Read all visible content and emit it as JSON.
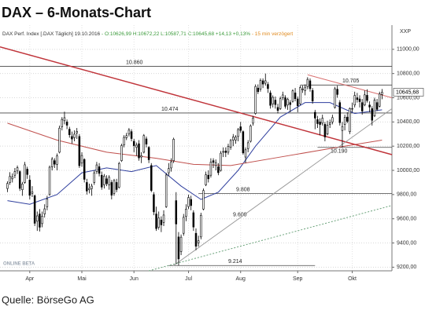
{
  "chart_data": {
    "type": "candlestick",
    "title": "DAX – 6-Monats-Chart",
    "header": [
      {
        "text": "DAX Perf. Index [.DAX Täglich] 19.10.2016",
        "color": "#333333"
      },
      {
        "text": " - O:10626,99 H:10672,22 L:10587,71 C:10645,68 +14,13 +0,13%",
        "color": "#3a9a3a"
      },
      {
        "text": " - 15 min verzögert",
        "color": "#e08a1e"
      }
    ],
    "axis_label": "XXP",
    "source": "Quelle: BörseGo AG",
    "watermark": "ONLINE BETA",
    "xlim": [
      -3,
      155
    ],
    "ylim": [
      9170,
      11200
    ],
    "xticks": [
      {
        "value": 9,
        "label": "Apr"
      },
      {
        "value": 30,
        "label": "Mai"
      },
      {
        "value": 51,
        "label": "Jun"
      },
      {
        "value": 73,
        "label": "Jul"
      },
      {
        "value": 94,
        "label": "Aug"
      },
      {
        "value": 117,
        "label": "Sep"
      },
      {
        "value": 139,
        "label": "Okt"
      }
    ],
    "yticks": [
      {
        "value": 9200,
        "label": "9200,00"
      },
      {
        "value": 9400,
        "label": "9400,00"
      },
      {
        "value": 9600,
        "label": "9600,00"
      },
      {
        "value": 9800,
        "label": "9800,00"
      },
      {
        "value": 10000,
        "label": "10000,00"
      },
      {
        "value": 10200,
        "label": "10200,00"
      },
      {
        "value": 10400,
        "label": "10400,00"
      },
      {
        "value": 10600,
        "label": "10600,00"
      },
      {
        "value": 10800,
        "label": "10800,00"
      },
      {
        "value": 11000,
        "label": "11000,00"
      }
    ],
    "grid": true,
    "up_color": "#ffffff",
    "down_color": "#000000",
    "last": {
      "value": 10645.68,
      "label": "10645,68"
    },
    "candles": [
      [
        9850,
        9910,
        9820,
        9892
      ],
      [
        9900,
        9985,
        9880,
        9950
      ],
      [
        9930,
        9975,
        9900,
        9948
      ],
      [
        9960,
        10020,
        9935,
        9990
      ],
      [
        9995,
        10040,
        9970,
        10022
      ],
      [
        9990,
        10000,
        9830,
        9851
      ],
      [
        9840,
        9905,
        9790,
        9887
      ],
      [
        9900,
        10070,
        9890,
        10046
      ],
      [
        10010,
        10030,
        9930,
        9966
      ],
      [
        9920,
        9960,
        9760,
        9794
      ],
      [
        9810,
        9870,
        9780,
        9822
      ],
      [
        9790,
        9800,
        9540,
        9563
      ],
      [
        9580,
        9660,
        9500,
        9624
      ],
      [
        9640,
        9680,
        9495,
        9530
      ],
      [
        9560,
        9660,
        9530,
        9622
      ],
      [
        9640,
        9720,
        9610,
        9682
      ],
      [
        9700,
        9790,
        9670,
        9762
      ],
      [
        9800,
        10040,
        9790,
        10026
      ],
      [
        10030,
        10110,
        10000,
        10093
      ],
      [
        10080,
        10100,
        10020,
        10051
      ],
      [
        10050,
        10140,
        10000,
        10120
      ],
      [
        10150,
        10370,
        10140,
        10349
      ],
      [
        10360,
        10440,
        10330,
        10421
      ],
      [
        10410,
        10485,
        10380,
        10435
      ],
      [
        10400,
        10420,
        10340,
        10373
      ],
      [
        10340,
        10360,
        10270,
        10294
      ],
      [
        10280,
        10320,
        10220,
        10259
      ],
      [
        10270,
        10330,
        10240,
        10299
      ],
      [
        10310,
        10350,
        10260,
        10321
      ],
      [
        10280,
        10300,
        10020,
        10039
      ],
      [
        10060,
        10150,
        10030,
        10123
      ],
      [
        10090,
        10100,
        9900,
        9926
      ],
      [
        9900,
        9930,
        9800,
        9829
      ],
      [
        9840,
        9890,
        9810,
        9851
      ],
      [
        9850,
        9890,
        9790,
        9870
      ],
      [
        9900,
        10000,
        9880,
        9980
      ],
      [
        9990,
        10070,
        9970,
        10045
      ],
      [
        10030,
        10060,
        9950,
        9975
      ],
      [
        9960,
        9990,
        9840,
        9862
      ],
      [
        9880,
        9970,
        9850,
        9952
      ],
      [
        9930,
        9960,
        9870,
        9890
      ],
      [
        9880,
        9960,
        9840,
        9943
      ],
      [
        9900,
        9920,
        9760,
        9795
      ],
      [
        9810,
        9930,
        9790,
        9916
      ],
      [
        9900,
        9930,
        9820,
        9842
      ],
      [
        9860,
        10070,
        9850,
        10057
      ],
      [
        10080,
        10220,
        10070,
        10205
      ],
      [
        10210,
        10290,
        10190,
        10272
      ],
      [
        10270,
        10310,
        10250,
        10287
      ],
      [
        10300,
        10350,
        10280,
        10333
      ],
      [
        10320,
        10340,
        10240,
        10263
      ],
      [
        10240,
        10260,
        10150,
        10204
      ],
      [
        10190,
        10230,
        10120,
        10208
      ],
      [
        10220,
        10250,
        10080,
        10103
      ],
      [
        10110,
        10150,
        10060,
        10121
      ],
      [
        10150,
        10300,
        10140,
        10287
      ],
      [
        10260,
        10280,
        10190,
        10217
      ],
      [
        10190,
        10200,
        10060,
        10088
      ],
      [
        10040,
        10060,
        9820,
        9834
      ],
      [
        9800,
        9820,
        9630,
        9657
      ],
      [
        9640,
        9700,
        9500,
        9519
      ],
      [
        9530,
        9660,
        9510,
        9606
      ],
      [
        9590,
        9620,
        9490,
        9550
      ],
      [
        9570,
        9670,
        9540,
        9631
      ],
      [
        9700,
        9980,
        9690,
        9962
      ],
      [
        9980,
        10060,
        9950,
        10015
      ],
      [
        10020,
        10100,
        9990,
        10071
      ],
      [
        10080,
        10270,
        10060,
        10257
      ],
      [
        9750,
        9820,
        9226,
        9557
      ],
      [
        9450,
        9490,
        9214,
        9268
      ],
      [
        9330,
        9470,
        9300,
        9448
      ],
      [
        9480,
        9640,
        9460,
        9612
      ],
      [
        9620,
        9720,
        9580,
        9680
      ],
      [
        9700,
        9800,
        9680,
        9776
      ],
      [
        9760,
        9790,
        9670,
        9709
      ],
      [
        9650,
        9670,
        9500,
        9532
      ],
      [
        9480,
        9520,
        9340,
        9373
      ],
      [
        9400,
        9460,
        9370,
        9418
      ],
      [
        9450,
        9650,
        9430,
        9629
      ],
      [
        9680,
        9850,
        9670,
        9833
      ],
      [
        9880,
        9990,
        9870,
        9964
      ],
      [
        9960,
        10000,
        9900,
        9930
      ],
      [
        9960,
        10100,
        9940,
        10068
      ],
      [
        10080,
        10100,
        10020,
        10066
      ],
      [
        10040,
        10090,
        10000,
        10064
      ],
      [
        10030,
        10060,
        9960,
        9981
      ],
      [
        10000,
        10160,
        9990,
        10142
      ],
      [
        10150,
        10190,
        10110,
        10156
      ],
      [
        10160,
        10190,
        10110,
        10147
      ],
      [
        10150,
        10220,
        10130,
        10198
      ],
      [
        10190,
        10260,
        10170,
        10247
      ],
      [
        10250,
        10300,
        10200,
        10275
      ],
      [
        10250,
        10290,
        10220,
        10275
      ],
      [
        10280,
        10350,
        10240,
        10337
      ],
      [
        10360,
        10400,
        10310,
        10330
      ],
      [
        10320,
        10330,
        10130,
        10144
      ],
      [
        10110,
        10190,
        10060,
        10170
      ],
      [
        10180,
        10250,
        10150,
        10228
      ],
      [
        10240,
        10380,
        10230,
        10367
      ],
      [
        10390,
        10450,
        10370,
        10432
      ],
      [
        10470,
        10710,
        10460,
        10693
      ],
      [
        10680,
        10710,
        10630,
        10650
      ],
      [
        10670,
        10760,
        10650,
        10743
      ],
      [
        10740,
        10760,
        10680,
        10713
      ],
      [
        10720,
        10800,
        10700,
        10740
      ],
      [
        10710,
        10730,
        10640,
        10676
      ],
      [
        10640,
        10660,
        10510,
        10537
      ],
      [
        10550,
        10620,
        10520,
        10603
      ],
      [
        10580,
        10610,
        10510,
        10544
      ],
      [
        10520,
        10550,
        10470,
        10495
      ],
      [
        10510,
        10610,
        10500,
        10592
      ],
      [
        10600,
        10650,
        10580,
        10623
      ],
      [
        10600,
        10620,
        10510,
        10529
      ],
      [
        10540,
        10600,
        10500,
        10587
      ],
      [
        10560,
        10580,
        10480,
        10544
      ],
      [
        10570,
        10670,
        10560,
        10657
      ],
      [
        10640,
        10680,
        10570,
        10592
      ],
      [
        10590,
        10610,
        10480,
        10534
      ],
      [
        10550,
        10700,
        10540,
        10684
      ],
      [
        10670,
        10700,
        10640,
        10672
      ],
      [
        10660,
        10710,
        10620,
        10687
      ],
      [
        10690,
        10770,
        10670,
        10752
      ],
      [
        10740,
        10760,
        10650,
        10675
      ],
      [
        10660,
        10680,
        10550,
        10573
      ],
      [
        10480,
        10500,
        10340,
        10432
      ],
      [
        10420,
        10450,
        10350,
        10386
      ],
      [
        10400,
        10430,
        10290,
        10379
      ],
      [
        10390,
        10460,
        10370,
        10431
      ],
      [
        10380,
        10400,
        10240,
        10276
      ],
      [
        10300,
        10410,
        10290,
        10373
      ],
      [
        10380,
        10420,
        10350,
        10393
      ],
      [
        10400,
        10460,
        10380,
        10436
      ],
      [
        10520,
        10690,
        10510,
        10674
      ],
      [
        10670,
        10700,
        10600,
        10627
      ],
      [
        10560,
        10580,
        10370,
        10394
      ],
      [
        10330,
        10400,
        10190,
        10362
      ],
      [
        10380,
        10460,
        10330,
        10438
      ],
      [
        10440,
        10480,
        10390,
        10405
      ],
      [
        10320,
        10520,
        10300,
        10511
      ],
      [
        10510,
        10560,
        10480,
        10511
      ],
      [
        10540,
        10650,
        10520,
        10619
      ],
      [
        10600,
        10640,
        10560,
        10585
      ],
      [
        10590,
        10620,
        10520,
        10568
      ],
      [
        10560,
        10590,
        10460,
        10490
      ],
      [
        10540,
        10660,
        10530,
        10624
      ],
      [
        10620,
        10670,
        10560,
        10577
      ],
      [
        10540,
        10570,
        10480,
        10523
      ],
      [
        10510,
        10530,
        10370,
        10414
      ],
      [
        10450,
        10600,
        10440,
        10580
      ],
      [
        10560,
        10590,
        10490,
        10504
      ],
      [
        10530,
        10650,
        10520,
        10631
      ],
      [
        10626.99,
        10672.22,
        10587.71,
        10645.68
      ]
    ],
    "lines": [
      {
        "color": "#2f3f9e",
        "width": 1,
        "x": [
          0,
          9,
          20,
          30,
          40,
          50,
          60,
          70,
          78,
          85,
          93,
          100,
          110,
          120,
          130,
          140,
          151
        ],
        "values": [
          9750,
          9720,
          9800,
          9980,
          10020,
          9990,
          10040,
          9870,
          9760,
          9820,
          10000,
          10200,
          10440,
          10560,
          10560,
          10470,
          10500
        ]
      },
      {
        "color": "#c0504d",
        "width": 1,
        "x": [
          0,
          20,
          40,
          60,
          75,
          90,
          110,
          130,
          151
        ],
        "values": [
          10390,
          10250,
          10150,
          10100,
          10050,
          10040,
          10110,
          10180,
          10250
        ]
      },
      {
        "color": "#c0343a",
        "width": 1.5,
        "x": [
          -3,
          155
        ],
        "values": [
          11020,
          10130
        ]
      },
      {
        "color": "#d97070",
        "width": 1,
        "x": [
          121,
          155
        ],
        "values": [
          10790,
          10600
        ]
      },
      {
        "color": "#999999",
        "width": 1,
        "x": [
          67,
          155
        ],
        "values": [
          9214,
          10510
        ]
      },
      {
        "color": "#6aa27a",
        "width": 1,
        "dash": "2,2",
        "x": [
          57,
          155
        ],
        "values": [
          9170,
          9710
        ]
      }
    ],
    "levels": [
      {
        "value": 10860,
        "label": "10.860",
        "x": [
          -3,
          155
        ]
      },
      {
        "value": 10474,
        "label": "10.474",
        "x": [
          -3,
          155
        ]
      },
      {
        "value": 10705,
        "label": "10.705",
        "x": [
          118,
          155
        ]
      },
      {
        "value": 10190,
        "label": "10.190",
        "x": [
          125,
          155
        ]
      },
      {
        "value": 9808,
        "label": "9.808",
        "x": [
          77,
          155
        ]
      },
      {
        "value": 9600,
        "label": "9.600"
      },
      {
        "value": 9214,
        "label": "9.214",
        "x": [
          65,
          124
        ]
      }
    ]
  }
}
